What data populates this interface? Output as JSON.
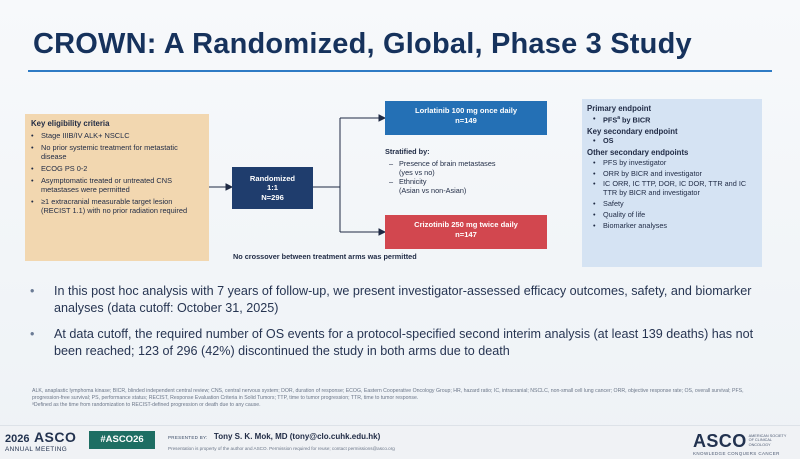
{
  "title": "CROWN: A Randomized, Global, Phase 3 Study",
  "eligibility": {
    "heading": "Key eligibility criteria",
    "criteria": [
      "Stage IIIB/IV ALK+ NSCLC",
      "No prior systemic treatment for metastatic disease",
      "ECOG PS 0-2",
      "Asymptomatic treated or untreated CNS metastases were permitted",
      "≥1 extracranial measurable target lesion (RECIST 1.1) with no prior radiation required"
    ]
  },
  "randomized": {
    "line1": "Randomized",
    "line2": "1:1",
    "line3": "N=296"
  },
  "arms": [
    {
      "name": "Lorlatinib 100 mg once daily",
      "n": "n=149",
      "color": "#2470b5"
    },
    {
      "name": "Crizotinib 250 mg twice daily",
      "n": "n=147",
      "color": "#d2474f"
    }
  ],
  "stratified": {
    "heading": "Stratified by:",
    "items": [
      {
        "main": "Presence of brain metastases",
        "sub": "(yes vs no)"
      },
      {
        "main": "Ethnicity",
        "sub": "(Asian vs non-Asian)"
      }
    ]
  },
  "no_crossover": "No crossover between treatment arms was permitted",
  "endpoints": {
    "primary_heading": "Primary endpoint",
    "primary_item": "PFS",
    "primary_sup": "a",
    "primary_rest": " by BICR",
    "key_secondary_heading": "Key secondary endpoint",
    "key_secondary_item": "OS",
    "other_heading": "Other secondary endpoints",
    "other_items": [
      "PFS by investigator",
      "ORR by BICR and investigator",
      "IC ORR, IC TTP, DOR, IC DOR, TTR and IC TTR by BICR and investigator",
      "Safety",
      "Quality of life",
      "Biomarker analyses"
    ]
  },
  "bullets": [
    "In this post hoc analysis with 7 years of follow-up, we present investigator-assessed efficacy outcomes, safety, and biomarker analyses (data cutoff: October 31, 2025)",
    "At data cutoff, the required number of OS events for a protocol-specified second interim analysis (at least 139 deaths) has not been reached; 123 of 296 (42%) discontinued the study in both arms due to death"
  ],
  "footnote_abbrev": "ALK, anaplastic lymphoma kinase; BICR, blinded independent central review; CNS, central nervous system; DOR, duration of response; ECOG, Eastern Cooperative Oncology Group; HR, hazard ratio; IC, intracranial; NSCLC, non-small cell lung cancer; ORR, objective response rate; OS, overall survival; PFS, progression-free survival; PS, performance status; RECIST, Response Evaluation Criteria in Solid Tumors; TTP, time to tumor progression; TTR, time to tumor response.",
  "footnote_a": "ᵃDefined as the time from randomization to RECIST-defined progression or death due to any cause.",
  "footer": {
    "meeting_year": "2026",
    "meeting_name": "ASCO",
    "meeting_sub": "ANNUAL MEETING",
    "hashtag": "#ASCO26",
    "presented_by_label": "PRESENTED BY:",
    "presenter": "Tony S. K. Mok, MD (tony@clo.cuhk.edu.hk)",
    "property_note": "Presentation is property of the author and ASCO. Permission required for reuse; contact permissions@asco.org",
    "society_name": "ASCO",
    "society_full": "AMERICAN SOCIETY OF CLINICAL ONCOLOGY",
    "tagline": "KNOWLEDGE CONQUERS CANCER"
  },
  "colors": {
    "title": "#16325c",
    "title_rule": "#2f7bc4",
    "eligibility_bg": "#f2d7b0",
    "randomized_bg": "#1f3d6d",
    "endpoints_bg": "#d5e3f3",
    "hashtag_bg": "#1e6e63"
  }
}
